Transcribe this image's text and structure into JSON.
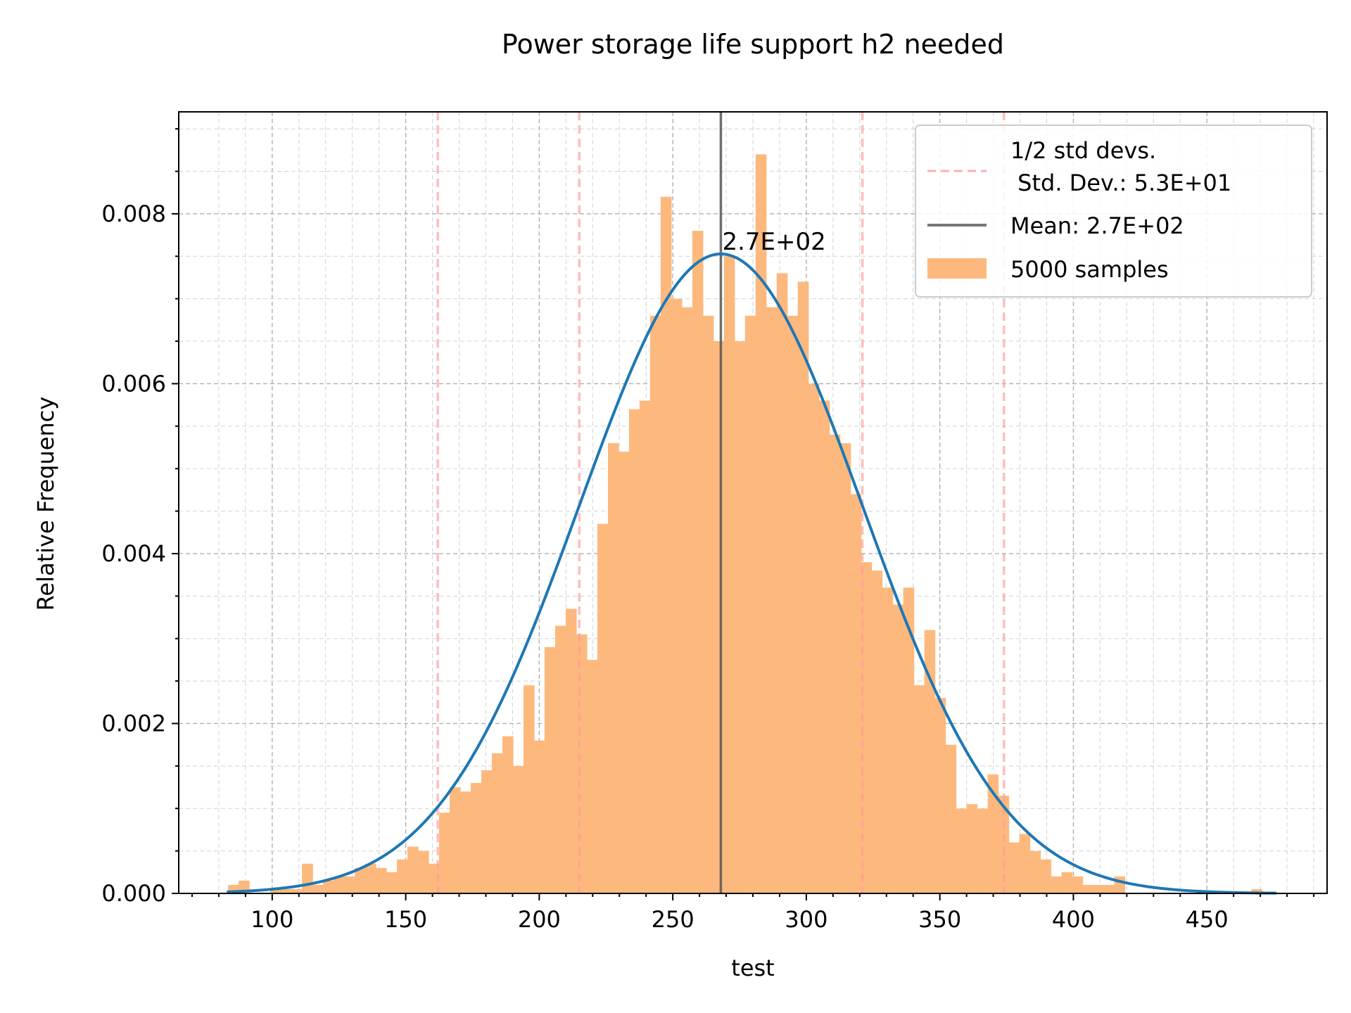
{
  "chart_data": {
    "type": "bar",
    "title": "Power storage  life support h2 needed",
    "xlabel": "test",
    "ylabel": "Relative Frequency",
    "xlim": [
      65,
      495
    ],
    "ylim": [
      0,
      0.0092
    ],
    "x_ticks": [
      100,
      150,
      200,
      250,
      300,
      350,
      400,
      450
    ],
    "y_ticks": [
      0.0,
      0.002,
      0.004,
      0.006,
      0.008
    ],
    "x_tick_labels": [
      "100",
      "150",
      "200",
      "250",
      "300",
      "350",
      "400",
      "450"
    ],
    "y_tick_labels": [
      "0.000",
      "0.002",
      "0.004",
      "0.006",
      "0.008"
    ],
    "grid": true,
    "legend_position": "top-right",
    "mean": 268,
    "mean_label": "2.7E+02",
    "std": 53,
    "std_lines": [
      162,
      215,
      321,
      374
    ],
    "legend": {
      "std_label_line1": "1/2 std devs.",
      "std_label_line2": " Std. Dev.: 5.3E+01",
      "mean_label": "Mean: 2.7E+02",
      "samples_label": "5000 samples"
    },
    "histogram": {
      "bin_start": 83.5,
      "bin_width": 3.95,
      "values": [
        0.0001,
        0.00015,
        0.0,
        0.0,
        5e-05,
        5e-05,
        5e-05,
        0.00035,
        0.0001,
        0.00015,
        0.0002,
        0.0002,
        0.0003,
        0.00035,
        0.0003,
        0.00025,
        0.0004,
        0.00055,
        0.0005,
        0.00035,
        0.00095,
        0.00125,
        0.0012,
        0.0013,
        0.00145,
        0.00165,
        0.00185,
        0.0015,
        0.00245,
        0.0018,
        0.0029,
        0.00315,
        0.00335,
        0.00305,
        0.00275,
        0.00435,
        0.0053,
        0.0052,
        0.0057,
        0.0058,
        0.0068,
        0.0082,
        0.007,
        0.0069,
        0.0078,
        0.0068,
        0.0065,
        0.0075,
        0.0065,
        0.0068,
        0.0087,
        0.0069,
        0.0073,
        0.0068,
        0.0072,
        0.006,
        0.0058,
        0.0054,
        0.0053,
        0.0047,
        0.0039,
        0.0038,
        0.0036,
        0.0034,
        0.0036,
        0.00245,
        0.0031,
        0.0023,
        0.00175,
        0.001,
        0.00105,
        0.001,
        0.0014,
        0.00115,
        0.0006,
        0.0007,
        0.0005,
        0.0004,
        0.0002,
        0.00025,
        0.0002,
        0.0001,
        0.0001,
        0.0001,
        0.0002,
        0.0,
        0.0,
        0.0,
        0.0,
        0.0,
        0.0,
        0.0,
        0.0,
        0.0,
        0.0,
        0.0,
        0.0,
        5e-05
      ],
      "color": "#fdb97d"
    },
    "pdf_curve": {
      "mean": 268,
      "std": 53,
      "x_range": [
        83,
        476
      ],
      "color": "#1f77b4"
    },
    "colors": {
      "std_line": "#ff9999",
      "mean_line": "#555555"
    }
  }
}
